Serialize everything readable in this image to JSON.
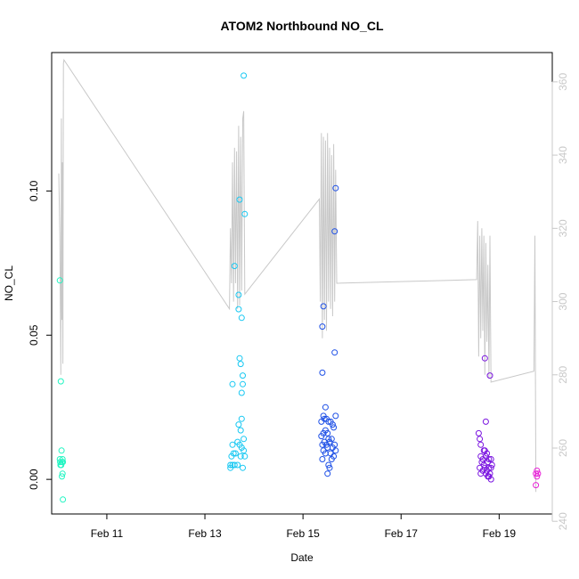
{
  "chart_data": {
    "type": "scatter",
    "title": "ATOM2 Northbound NO_CL",
    "xlabel": "Date",
    "ylabel": "NO_CL",
    "x_unit": "date",
    "xlim": [
      "2021-02-09 21:00",
      "2021-02-20 02:00"
    ],
    "ylim": [
      -0.012,
      0.148
    ],
    "y2lim": [
      242,
      368
    ],
    "x_ticks": [
      {
        "date": "2021-02-11 00:00",
        "label": "Feb 11"
      },
      {
        "date": "2021-02-13 00:00",
        "label": "Feb 13"
      },
      {
        "date": "2021-02-15 00:00",
        "label": "Feb 15"
      },
      {
        "date": "2021-02-17 00:00",
        "label": "Feb 17"
      },
      {
        "date": "2021-02-19 00:00",
        "label": "Feb 19"
      }
    ],
    "y_ticks": [
      {
        "value": 0.0,
        "label": "0.00"
      },
      {
        "value": 0.05,
        "label": "0.05"
      },
      {
        "value": 0.1,
        "label": "0.10"
      }
    ],
    "y2_ticks": [
      {
        "value": 240,
        "label": "240"
      },
      {
        "value": 260,
        "label": "260"
      },
      {
        "value": 280,
        "label": "280"
      },
      {
        "value": 300,
        "label": "300"
      },
      {
        "value": 320,
        "label": "320"
      },
      {
        "value": 340,
        "label": "340"
      },
      {
        "value": 360,
        "label": "360"
      }
    ],
    "grid": false,
    "legend": "none",
    "colors": {
      "line": "#c8c8c8",
      "right_axis": "#c8c8c8",
      "axis": "#000000"
    },
    "series": [
      {
        "color": "#20f5c2",
        "points": [
          [
            "2021-02-10 01:00",
            0.069
          ],
          [
            "2021-02-10 01:30",
            0.034
          ],
          [
            "2021-02-10 01:00",
            0.007
          ],
          [
            "2021-02-10 01:10",
            0.006
          ],
          [
            "2021-02-10 01:20",
            0.005
          ],
          [
            "2021-02-10 01:40",
            0.005
          ],
          [
            "2021-02-10 01:50",
            0.01
          ],
          [
            "2021-02-10 02:00",
            0.006
          ],
          [
            "2021-02-10 02:20",
            0.007
          ],
          [
            "2021-02-10 02:30",
            0.006
          ],
          [
            "2021-02-10 02:20",
            0.002
          ],
          [
            "2021-02-10 02:00",
            0.001
          ],
          [
            "2021-02-10 02:30",
            -0.007
          ]
        ]
      },
      {
        "color": "#18c8f2",
        "points": [
          [
            "2021-02-13 19:00",
            0.14
          ],
          [
            "2021-02-13 17:00",
            0.097
          ],
          [
            "2021-02-13 19:30",
            0.092
          ],
          [
            "2021-02-13 14:30",
            0.074
          ],
          [
            "2021-02-13 16:30",
            0.064
          ],
          [
            "2021-02-13 16:30",
            0.059
          ],
          [
            "2021-02-13 18:00",
            0.056
          ],
          [
            "2021-02-13 17:00",
            0.042
          ],
          [
            "2021-02-13 17:30",
            0.04
          ],
          [
            "2021-02-13 18:30",
            0.036
          ],
          [
            "2021-02-13 13:30",
            0.033
          ],
          [
            "2021-02-13 18:30",
            0.033
          ],
          [
            "2021-02-13 18:00",
            0.03
          ],
          [
            "2021-02-13 18:00",
            0.021
          ],
          [
            "2021-02-13 16:30",
            0.019
          ],
          [
            "2021-02-13 17:30",
            0.017
          ],
          [
            "2021-02-13 19:00",
            0.014
          ],
          [
            "2021-02-13 16:00",
            0.013
          ],
          [
            "2021-02-13 13:30",
            0.012
          ],
          [
            "2021-02-13 17:00",
            0.012
          ],
          [
            "2021-02-13 18:00",
            0.011
          ],
          [
            "2021-02-13 19:00",
            0.01
          ],
          [
            "2021-02-13 15:00",
            0.009
          ],
          [
            "2021-02-13 14:00",
            0.009
          ],
          [
            "2021-02-13 13:00",
            0.008
          ],
          [
            "2021-02-13 17:30",
            0.008
          ],
          [
            "2021-02-13 19:30",
            0.008
          ],
          [
            "2021-02-13 12:30",
            0.005
          ],
          [
            "2021-02-13 13:30",
            0.005
          ],
          [
            "2021-02-13 16:00",
            0.005
          ],
          [
            "2021-02-13 12:30",
            0.004
          ],
          [
            "2021-02-13 14:30",
            0.005
          ],
          [
            "2021-02-13 18:30",
            0.004
          ]
        ]
      },
      {
        "color": "#1d4fe6",
        "points": [
          [
            "2021-02-15 16:00",
            0.101
          ],
          [
            "2021-02-15 15:30",
            0.086
          ],
          [
            "2021-02-15 10:00",
            0.06
          ],
          [
            "2021-02-15 09:30",
            0.053
          ],
          [
            "2021-02-15 15:30",
            0.044
          ],
          [
            "2021-02-15 09:30",
            0.037
          ],
          [
            "2021-02-15 11:00",
            0.025
          ],
          [
            "2021-02-15 10:00",
            0.022
          ],
          [
            "2021-02-15 16:00",
            0.022
          ],
          [
            "2021-02-15 10:30",
            0.021
          ],
          [
            "2021-02-15 11:30",
            0.021
          ],
          [
            "2021-02-15 12:30",
            0.02
          ],
          [
            "2021-02-15 13:30",
            0.02
          ],
          [
            "2021-02-15 09:00",
            0.02
          ],
          [
            "2021-02-15 14:30",
            0.019
          ],
          [
            "2021-02-15 15:00",
            0.018
          ],
          [
            "2021-02-15 11:00",
            0.017
          ],
          [
            "2021-02-15 10:00",
            0.016
          ],
          [
            "2021-02-15 12:00",
            0.016
          ],
          [
            "2021-02-15 09:00",
            0.015
          ],
          [
            "2021-02-15 12:30",
            0.014
          ],
          [
            "2021-02-15 14:00",
            0.014
          ],
          [
            "2021-02-15 10:30",
            0.013
          ],
          [
            "2021-02-15 13:00",
            0.013
          ],
          [
            "2021-02-15 11:30",
            0.012
          ],
          [
            "2021-02-15 15:30",
            0.012
          ],
          [
            "2021-02-15 09:30",
            0.012
          ],
          [
            "2021-02-15 14:30",
            0.011
          ],
          [
            "2021-02-15 12:00",
            0.011
          ],
          [
            "2021-02-15 16:00",
            0.01
          ],
          [
            "2021-02-15 10:00",
            0.01
          ],
          [
            "2021-02-15 13:30",
            0.009
          ],
          [
            "2021-02-15 11:00",
            0.009
          ],
          [
            "2021-02-15 15:00",
            0.008
          ],
          [
            "2021-02-15 09:30",
            0.007
          ],
          [
            "2021-02-15 14:00",
            0.007
          ],
          [
            "2021-02-15 12:30",
            0.005
          ],
          [
            "2021-02-15 13:00",
            0.004
          ],
          [
            "2021-02-15 12:00",
            0.002
          ]
        ]
      },
      {
        "color": "#7a14e0",
        "points": [
          [
            "2021-02-18 17:00",
            0.042
          ],
          [
            "2021-02-18 19:30",
            0.036
          ],
          [
            "2021-02-18 17:30",
            0.02
          ],
          [
            "2021-02-18 14:00",
            0.016
          ],
          [
            "2021-02-18 14:30",
            0.014
          ],
          [
            "2021-02-18 15:00",
            0.012
          ],
          [
            "2021-02-18 16:30",
            0.01
          ],
          [
            "2021-02-18 17:00",
            0.01
          ],
          [
            "2021-02-18 18:00",
            0.009
          ],
          [
            "2021-02-18 15:00",
            0.008
          ],
          [
            "2021-02-18 17:30",
            0.008
          ],
          [
            "2021-02-18 16:00",
            0.007
          ],
          [
            "2021-02-18 19:00",
            0.007
          ],
          [
            "2021-02-18 20:00",
            0.007
          ],
          [
            "2021-02-18 15:30",
            0.006
          ],
          [
            "2021-02-18 18:30",
            0.006
          ],
          [
            "2021-02-18 20:30",
            0.005
          ],
          [
            "2021-02-18 16:30",
            0.005
          ],
          [
            "2021-02-18 14:30",
            0.004
          ],
          [
            "2021-02-18 19:00",
            0.004
          ],
          [
            "2021-02-18 17:00",
            0.004
          ],
          [
            "2021-02-18 20:00",
            0.004
          ],
          [
            "2021-02-18 18:00",
            0.003
          ],
          [
            "2021-02-18 16:00",
            0.003
          ],
          [
            "2021-02-18 15:00",
            0.002
          ],
          [
            "2021-02-18 19:30",
            0.002
          ],
          [
            "2021-02-18 17:30",
            0.002
          ],
          [
            "2021-02-18 18:30",
            0.001
          ],
          [
            "2021-02-18 19:00",
            0.001
          ],
          [
            "2021-02-18 20:00",
            0.0
          ]
        ]
      },
      {
        "color": "#e822d8",
        "points": [
          [
            "2021-02-19 18:30",
            0.003
          ],
          [
            "2021-02-19 19:00",
            0.002
          ],
          [
            "2021-02-19 18:00",
            0.002
          ],
          [
            "2021-02-19 18:30",
            0.001
          ],
          [
            "2021-02-19 18:00",
            -0.002
          ]
        ]
      }
    ],
    "line_right_axis": [
      [
        "2021-02-10 00:30",
        335
      ],
      [
        "2021-02-10 01:00",
        318
      ],
      [
        "2021-02-10 01:30",
        280
      ],
      [
        "2021-02-10 01:45",
        350
      ],
      [
        "2021-02-10 02:00",
        295
      ],
      [
        "2021-02-10 02:15",
        338
      ],
      [
        "2021-02-10 02:30",
        283
      ],
      [
        "2021-02-10 02:45",
        365
      ],
      [
        "2021-02-10 03:00",
        366
      ],
      [
        "2021-02-13 12:00",
        298
      ],
      [
        "2021-02-13 12:30",
        320
      ],
      [
        "2021-02-13 13:00",
        305
      ],
      [
        "2021-02-13 13:30",
        338
      ],
      [
        "2021-02-13 14:00",
        300
      ],
      [
        "2021-02-13 14:30",
        342
      ],
      [
        "2021-02-13 15:00",
        305
      ],
      [
        "2021-02-13 15:30",
        341
      ],
      [
        "2021-02-13 16:00",
        298
      ],
      [
        "2021-02-13 16:30",
        348
      ],
      [
        "2021-02-13 17:00",
        299
      ],
      [
        "2021-02-13 17:30",
        345
      ],
      [
        "2021-02-13 18:00",
        303
      ],
      [
        "2021-02-13 18:30",
        350
      ],
      [
        "2021-02-13 19:00",
        352
      ],
      [
        "2021-02-13 19:30",
        302
      ],
      [
        "2021-02-15 08:00",
        328
      ],
      [
        "2021-02-15 08:30",
        300
      ],
      [
        "2021-02-15 09:00",
        346
      ],
      [
        "2021-02-15 09:30",
        290
      ],
      [
        "2021-02-15 10:00",
        345
      ],
      [
        "2021-02-15 10:30",
        295
      ],
      [
        "2021-02-15 11:00",
        344
      ],
      [
        "2021-02-15 11:30",
        292
      ],
      [
        "2021-02-15 12:00",
        346
      ],
      [
        "2021-02-15 12:30",
        300
      ],
      [
        "2021-02-15 13:00",
        342
      ],
      [
        "2021-02-15 13:30",
        298
      ],
      [
        "2021-02-15 14:00",
        340
      ],
      [
        "2021-02-15 14:30",
        296
      ],
      [
        "2021-02-15 15:00",
        343
      ],
      [
        "2021-02-15 15:30",
        300
      ],
      [
        "2021-02-15 16:00",
        336
      ],
      [
        "2021-02-15 16:30",
        305
      ],
      [
        "2021-02-18 13:00",
        306
      ],
      [
        "2021-02-18 13:30",
        322
      ],
      [
        "2021-02-18 14:00",
        285
      ],
      [
        "2021-02-18 14:30",
        318
      ],
      [
        "2021-02-18 15:00",
        290
      ],
      [
        "2021-02-18 15:30",
        320
      ],
      [
        "2021-02-18 16:00",
        292
      ],
      [
        "2021-02-18 16:30",
        318
      ],
      [
        "2021-02-18 17:00",
        280
      ],
      [
        "2021-02-18 17:30",
        316
      ],
      [
        "2021-02-18 18:00",
        289
      ],
      [
        "2021-02-18 18:30",
        310
      ],
      [
        "2021-02-18 19:00",
        279
      ],
      [
        "2021-02-18 19:30",
        318
      ],
      [
        "2021-02-18 20:00",
        278
      ],
      [
        "2021-02-19 17:00",
        281
      ],
      [
        "2021-02-19 17:30",
        318
      ],
      [
        "2021-02-19 18:00",
        248
      ]
    ]
  }
}
